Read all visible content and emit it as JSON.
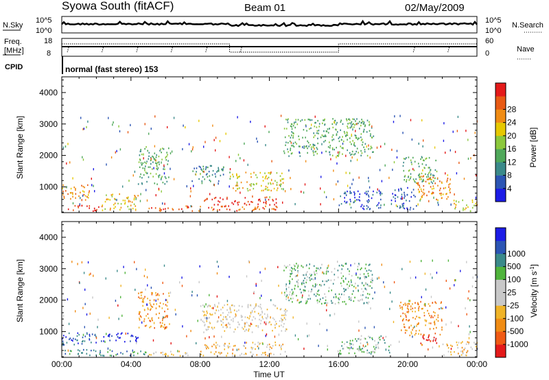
{
  "header": {
    "station": "Syowa South (fitACF)",
    "beam": "Beam 01",
    "date": "02/May/2009"
  },
  "noise_panel": {
    "left_label": "N.Sky",
    "right_label": "N.Search",
    "left_ticks": [
      "10^5",
      "10^0"
    ],
    "right_ticks": [
      "10^5",
      "10^0"
    ]
  },
  "freq_panel": {
    "left_label_line1": "Freq.",
    "left_label_line2": "[MHz]",
    "left_ticks": [
      "18",
      "8"
    ],
    "right_label": "Nave",
    "right_ticks": [
      "60",
      "0"
    ]
  },
  "cpid": {
    "label": "CPID",
    "mode_text": "normal (fast stereo) 153"
  },
  "x_axis": {
    "label": "Time UT",
    "ticks": [
      "00:00",
      "04:00",
      "08:00",
      "12:00",
      "16:00",
      "20:00",
      "00:00"
    ],
    "range_hours": [
      0,
      24
    ]
  },
  "colors": {
    "power": [
      "#1c1ce6",
      "#2c55b4",
      "#3b8a8a",
      "#4fa85a",
      "#8cc83c",
      "#e6c800",
      "#f08c14",
      "#e85a14",
      "#e41a1a"
    ],
    "velocity": [
      "#e41a1a",
      "#f05a14",
      "#f08c14",
      "#f0b428",
      "#c8c8c8",
      "#c8c8c8",
      "#50b43c",
      "#3b8a8a",
      "#2c55b4",
      "#1c1ce6"
    ]
  },
  "chart_data": [
    {
      "type": "heatmap",
      "title": "",
      "ylabel": "Slant Range [km]",
      "xlabel": "",
      "y_ticks": [
        1000,
        2000,
        3000,
        4000
      ],
      "ylim": [
        180,
        4500
      ],
      "xlim": [
        0,
        24
      ],
      "colorbar": {
        "label": "Power [dB]",
        "ticks": [
          "4",
          "8",
          "12",
          "16",
          "20",
          "24",
          "28"
        ],
        "range": [
          0,
          32
        ]
      },
      "regions": [
        {
          "t": [
            0.0,
            1.6
          ],
          "r": [
            600,
            1100
          ],
          "level": 6
        },
        {
          "t": [
            0.3,
            2.3
          ],
          "r": [
            250,
            450
          ],
          "level": 8
        },
        {
          "t": [
            2.3,
            4.4
          ],
          "r": [
            280,
            800
          ],
          "level": 5
        },
        {
          "t": [
            4.4,
            6.2
          ],
          "r": [
            1100,
            2300
          ],
          "level": 3
        },
        {
          "t": [
            5.0,
            12.8
          ],
          "r": [
            250,
            420
          ],
          "level": 7
        },
        {
          "t": [
            8.2,
            12.5
          ],
          "r": [
            450,
            700
          ],
          "level": 8
        },
        {
          "t": [
            7.5,
            9.7
          ],
          "r": [
            1200,
            1700
          ],
          "level": 2
        },
        {
          "t": [
            9.7,
            12.8
          ],
          "r": [
            900,
            1500
          ],
          "level": 5
        },
        {
          "t": [
            12.8,
            18.0
          ],
          "r": [
            2000,
            3200
          ],
          "level": 3
        },
        {
          "t": [
            16.0,
            18.5
          ],
          "r": [
            300,
            900
          ],
          "level": 1
        },
        {
          "t": [
            19.0,
            20.5
          ],
          "r": [
            300,
            1000
          ],
          "level": 1
        },
        {
          "t": [
            19.7,
            21.7
          ],
          "r": [
            1100,
            2000
          ],
          "level": 3
        },
        {
          "t": [
            20.5,
            22.5
          ],
          "r": [
            600,
            1400
          ],
          "level": 6
        },
        {
          "t": [
            22.5,
            24.0
          ],
          "r": [
            250,
            600
          ],
          "level": 5
        }
      ]
    },
    {
      "type": "heatmap",
      "title": "",
      "ylabel": "Slant Range [km]",
      "xlabel": "Time UT",
      "y_ticks": [
        1000,
        2000,
        3000,
        4000
      ],
      "ylim": [
        180,
        4500
      ],
      "xlim": [
        0,
        24
      ],
      "colorbar": {
        "label": "Velocity  [m s^-1]",
        "ticks": [
          "1000",
          "500",
          "100",
          "25",
          "-25",
          "-100",
          "-500",
          "-1000"
        ],
        "range": [
          -1200,
          1200
        ]
      },
      "regions": [
        {
          "t": [
            0.0,
            2.2
          ],
          "r": [
            600,
            1000
          ],
          "level": 8
        },
        {
          "t": [
            0.0,
            5.0
          ],
          "r": [
            250,
            450
          ],
          "level": 7
        },
        {
          "t": [
            2.2,
            4.4
          ],
          "r": [
            700,
            1000
          ],
          "level": 9
        },
        {
          "t": [
            4.4,
            6.2
          ],
          "r": [
            1100,
            2300
          ],
          "level": 2
        },
        {
          "t": [
            5.0,
            13.0
          ],
          "r": [
            250,
            400
          ],
          "level": 3
        },
        {
          "t": [
            8.2,
            12.8
          ],
          "r": [
            450,
            700
          ],
          "level": 3
        },
        {
          "t": [
            8.0,
            13.0
          ],
          "r": [
            1000,
            1900
          ],
          "level": 4
        },
        {
          "t": [
            12.8,
            18.0
          ],
          "r": [
            1900,
            3200
          ],
          "level": 6
        },
        {
          "t": [
            16.0,
            19.0
          ],
          "r": [
            300,
            900
          ],
          "level": 6
        },
        {
          "t": [
            19.5,
            22.0
          ],
          "r": [
            900,
            2000
          ],
          "level": 2
        },
        {
          "t": [
            20.5,
            22.0
          ],
          "r": [
            600,
            900
          ],
          "level": 0
        },
        {
          "t": [
            22.0,
            24.0
          ],
          "r": [
            250,
            700
          ],
          "level": 3
        }
      ]
    }
  ]
}
